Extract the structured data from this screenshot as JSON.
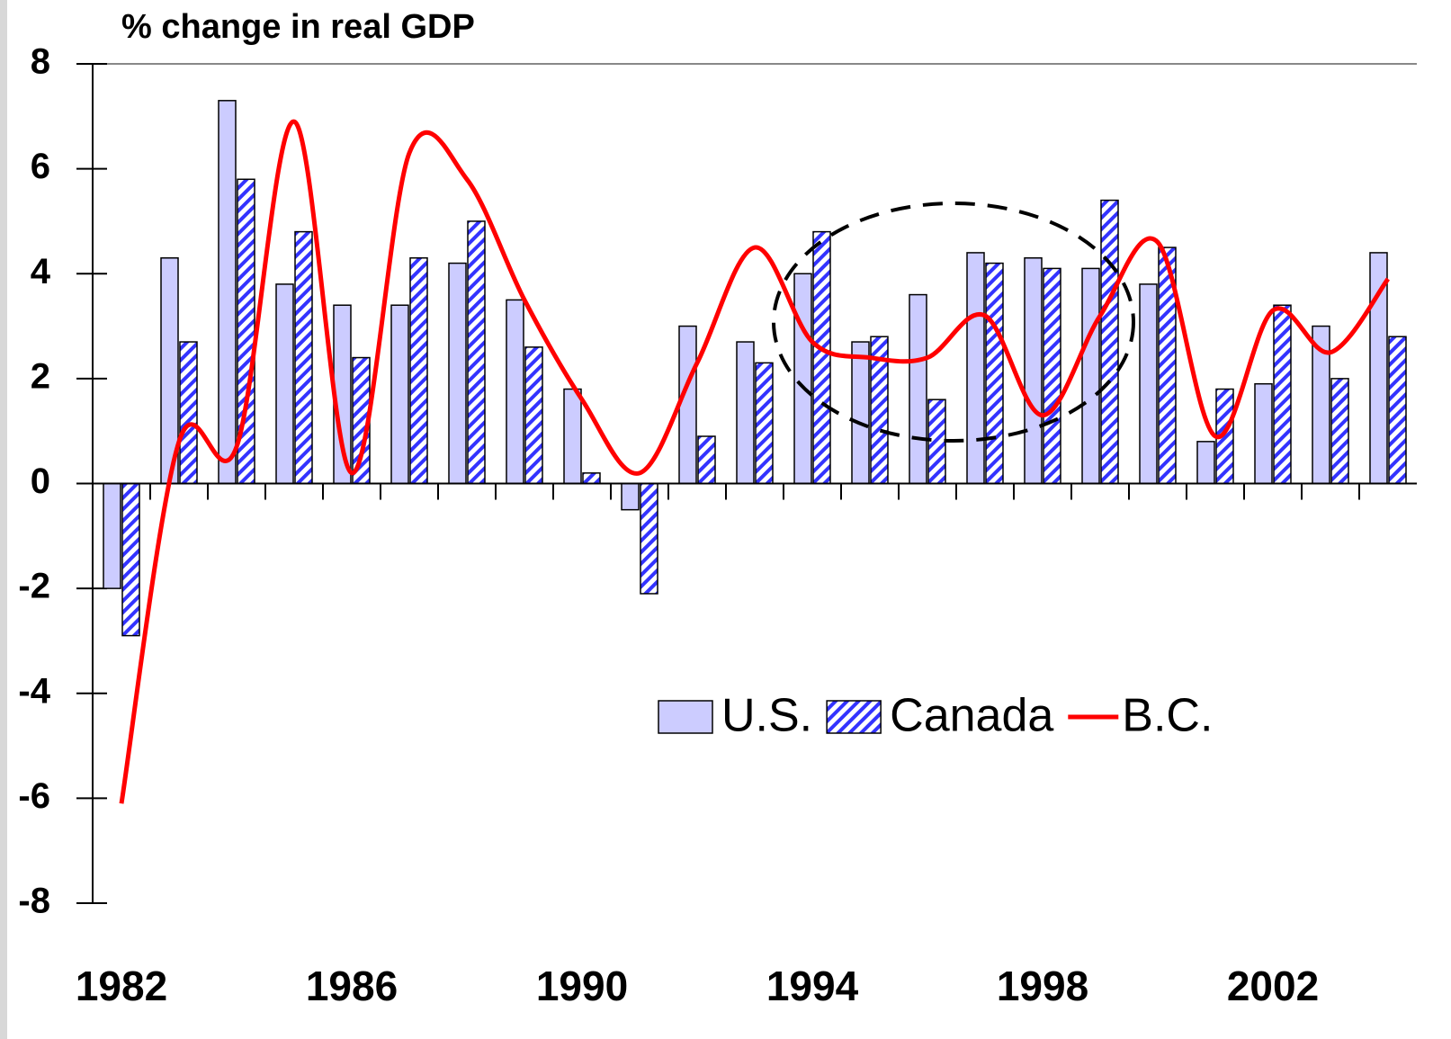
{
  "chart_data": {
    "type": "bar",
    "title": "% change in real GDP",
    "categories": [
      "1982",
      null,
      null,
      null,
      "1986",
      null,
      null,
      null,
      "1990",
      null,
      null,
      null,
      "1994",
      null,
      null,
      null,
      "1998",
      null,
      null,
      null,
      "2002",
      null,
      null
    ],
    "series": [
      {
        "name": "U.S.",
        "type": "bar",
        "color": "#ccccff",
        "values": [
          -2.0,
          4.3,
          7.3,
          3.8,
          3.4,
          3.4,
          4.2,
          3.5,
          1.8,
          -0.5,
          3.0,
          2.7,
          4.0,
          2.7,
          3.6,
          4.4,
          4.3,
          4.1,
          3.8,
          0.8,
          1.9,
          3.0,
          4.4
        ]
      },
      {
        "name": "Canada",
        "type": "bar",
        "color": "#3333ff",
        "hatch": true,
        "values": [
          -2.9,
          2.7,
          5.8,
          4.8,
          2.4,
          4.3,
          5.0,
          2.6,
          0.2,
          -2.1,
          0.9,
          2.3,
          4.8,
          2.8,
          1.6,
          4.2,
          4.1,
          5.4,
          4.5,
          1.8,
          3.4,
          2.0,
          2.8
        ]
      },
      {
        "name": "B.C.",
        "type": "line",
        "color": "#ff0000",
        "values": [
          -6.1,
          0.8,
          0.7,
          6.9,
          0.2,
          6.3,
          5.8,
          3.5,
          1.6,
          0.2,
          2.3,
          4.5,
          2.7,
          2.4,
          2.4,
          3.2,
          1.3,
          3.2,
          4.6,
          0.9,
          3.3,
          2.5,
          3.9
        ]
      }
    ],
    "ylim": [
      -8,
      8
    ],
    "yticks": [
      -8,
      -6,
      -4,
      -2,
      0,
      2,
      4,
      6,
      8
    ],
    "grid": false
  }
}
